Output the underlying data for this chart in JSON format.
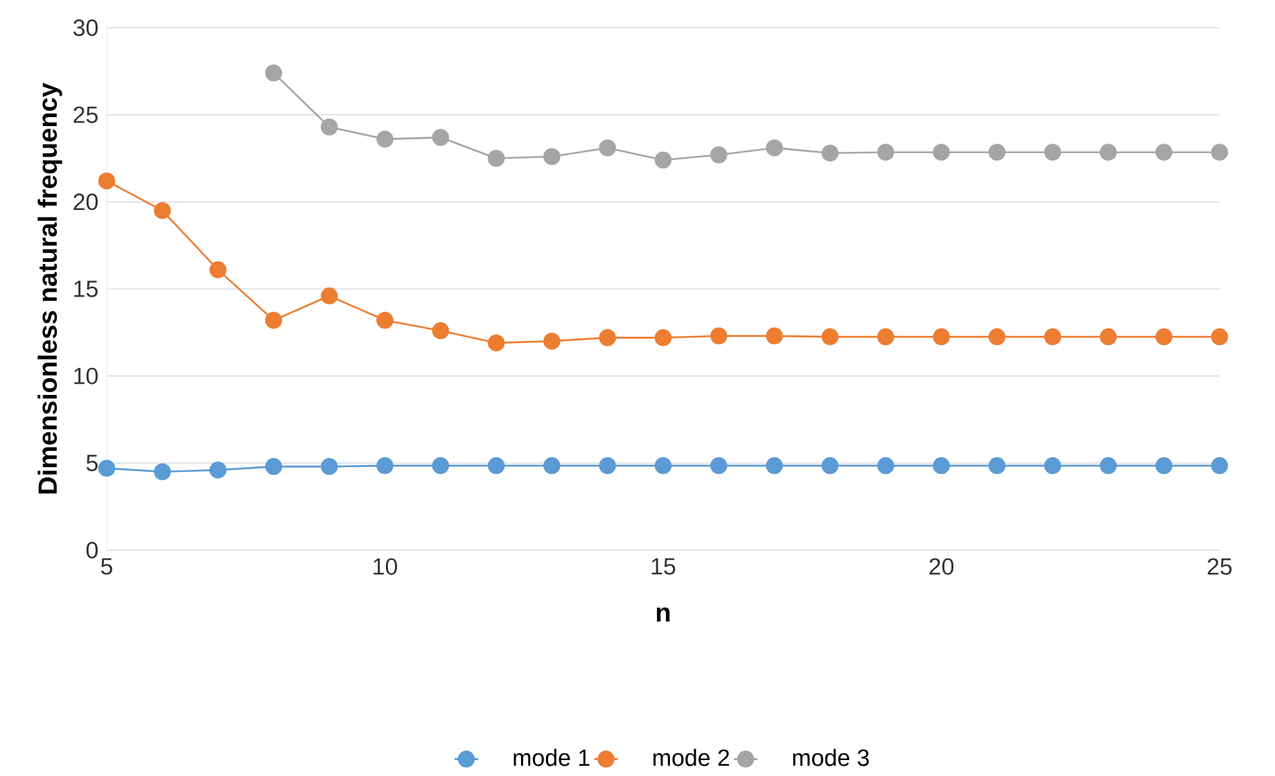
{
  "chart_data": {
    "type": "line",
    "xlabel": "n",
    "ylabel": "Dimensionless natural frequency",
    "x": [
      5,
      6,
      7,
      8,
      9,
      10,
      11,
      12,
      13,
      14,
      15,
      16,
      17,
      18,
      19,
      20,
      21,
      22,
      23,
      24,
      25
    ],
    "series": [
      {
        "name": "mode 1",
        "color": "#5b9bd5",
        "values": [
          4.7,
          4.5,
          4.6,
          4.8,
          4.8,
          4.85,
          4.85,
          4.85,
          4.85,
          4.85,
          4.85,
          4.85,
          4.85,
          4.85,
          4.85,
          4.85,
          4.85,
          4.85,
          4.85,
          4.85,
          4.85
        ]
      },
      {
        "name": "mode 2",
        "color": "#ed7d31",
        "values": [
          21.2,
          19.5,
          16.1,
          13.2,
          14.6,
          13.2,
          12.6,
          11.9,
          12.0,
          12.2,
          12.2,
          12.3,
          12.3,
          12.25,
          12.25,
          12.25,
          12.25,
          12.25,
          12.25,
          12.25,
          12.25
        ]
      },
      {
        "name": "mode 3",
        "color": "#a5a5a5",
        "values": [
          null,
          null,
          null,
          27.4,
          24.3,
          23.6,
          23.7,
          22.5,
          22.6,
          23.1,
          22.4,
          22.7,
          23.1,
          22.8,
          22.85,
          22.85,
          22.85,
          22.85,
          22.85,
          22.85,
          22.85
        ]
      }
    ],
    "xlim": [
      5,
      25
    ],
    "xticks": [
      5,
      10,
      15,
      20,
      25
    ],
    "ylim": [
      0,
      30
    ],
    "yticks": [
      0,
      5,
      10,
      15,
      20,
      25,
      30
    ],
    "grid": "y",
    "legend": "bottom",
    "marker": "circle",
    "line_style": "solid"
  }
}
